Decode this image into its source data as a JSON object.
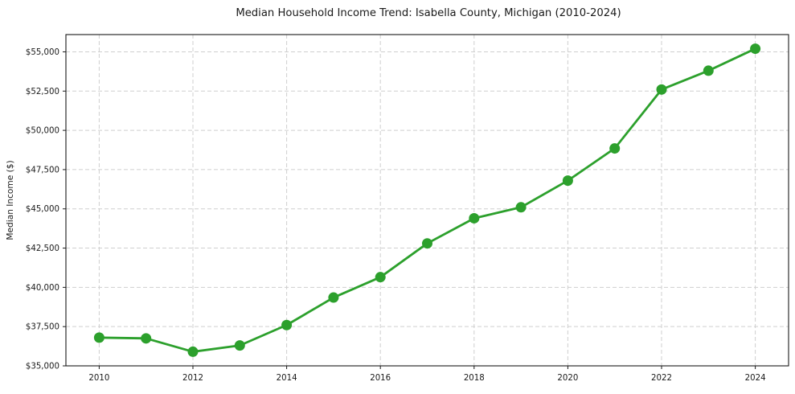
{
  "figure": {
    "background": "#ffffff"
  },
  "chart_data": {
    "type": "line",
    "title": "Median Household Income Trend: Isabella County, Michigan (2010-2024)",
    "xlabel": "",
    "ylabel": "Median Income ($)",
    "series": [
      {
        "name": "Median household income",
        "x": [
          2010,
          2011,
          2012,
          2013,
          2014,
          2015,
          2016,
          2017,
          2018,
          2019,
          2020,
          2021,
          2022,
          2023,
          2024
        ],
        "values": [
          36800,
          36750,
          35900,
          36300,
          37600,
          39350,
          40650,
          42800,
          44400,
          45100,
          46800,
          48850,
          52600,
          53800,
          55200
        ]
      }
    ],
    "xlim": [
      2009.29,
      2024.71
    ],
    "ylim": [
      35000,
      56100
    ],
    "yticks": {
      "values": [
        35000,
        37500,
        40000,
        42500,
        45000,
        47500,
        50000,
        52500,
        55000
      ],
      "labels": [
        "$35,000",
        "$37,500",
        "$40,000",
        "$42,500",
        "$45,000",
        "$47,500",
        "$50,000",
        "$52,500",
        "$55,000"
      ]
    },
    "xticks": {
      "values": [
        2010,
        2012,
        2014,
        2016,
        2018,
        2020,
        2022,
        2024
      ],
      "labels": [
        "2010",
        "2012",
        "2014",
        "2016",
        "2018",
        "2020",
        "2022",
        "2024"
      ]
    },
    "grid": true,
    "grid_style": "dashed",
    "legend": "none",
    "colors": {
      "line": "#2ca02c",
      "marker": "#2ca02c",
      "grid": "#cfcfcf",
      "frame": "#1a1a1a",
      "tick": "#1a1a1a",
      "text": "#1a1a1a",
      "background": "#ffffff"
    },
    "marker": {
      "shape": "circle",
      "radius": 6.5
    },
    "line_width": 2.8
  }
}
